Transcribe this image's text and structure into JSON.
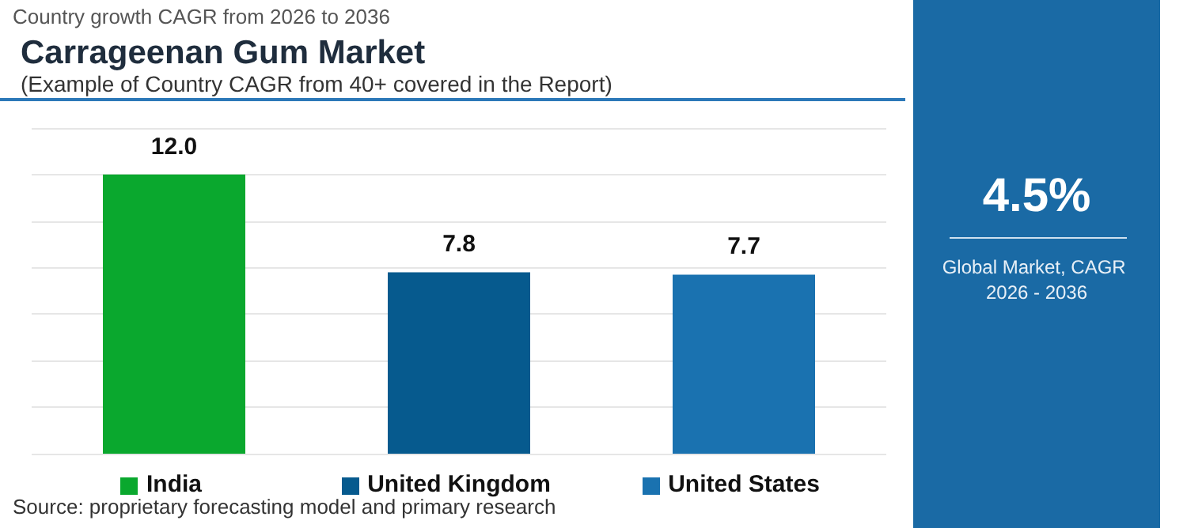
{
  "chart_data": [
    {
      "type": "bar",
      "title": "Carrageenan Gum Market",
      "subtitle": "(Example of Country CAGR from 40+ covered in the Report)",
      "annotations": [
        "Country growth CAGR from 2026 to 2036",
        "Source: proprietary forecasting model and primary research"
      ],
      "categories": [
        "India",
        "United Kingdom",
        "United States"
      ],
      "values": [
        12.0,
        7.8,
        7.7
      ],
      "colors": [
        "#0aa82e",
        "#065a8e",
        "#1a72b0"
      ],
      "value_labels": [
        "12.0",
        "7.8",
        "7.7"
      ],
      "ylim": [
        0,
        14
      ],
      "yticks": [
        {
          "value": 0,
          "label": null
        },
        {
          "value": 2,
          "label": null
        },
        {
          "value": 4,
          "label": null
        },
        {
          "value": 6,
          "label": null
        },
        {
          "value": 8,
          "label": null
        },
        {
          "value": 10,
          "label": null
        },
        {
          "value": 12,
          "label": null
        },
        {
          "value": 14,
          "label": null
        }
      ],
      "grid": "y",
      "tick_labels": "x"
    },
    {
      "type": "other",
      "title": "4.5%",
      "subtitle": "Global Market, CAGR 2026 - 2036"
    }
  ]
}
